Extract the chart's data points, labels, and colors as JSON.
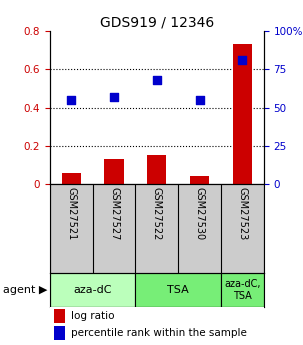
{
  "title": "GDS919 / 12346",
  "samples": [
    "GSM27521",
    "GSM27527",
    "GSM27522",
    "GSM27530",
    "GSM27523"
  ],
  "log_ratio": [
    0.058,
    0.13,
    0.155,
    0.042,
    0.73
  ],
  "percentile_rank": [
    55,
    57,
    68,
    55,
    81
  ],
  "bar_color": "#cc0000",
  "dot_color": "#0000cc",
  "ylim_left": [
    0,
    0.8
  ],
  "ylim_right": [
    0,
    100
  ],
  "yticks_left": [
    0,
    0.2,
    0.4,
    0.6,
    0.8
  ],
  "yticks_right": [
    0,
    25,
    50,
    75,
    100
  ],
  "ytick_labels_left": [
    "0",
    "0.2",
    "0.4",
    "0.6",
    "0.8"
  ],
  "ytick_labels_right": [
    "0",
    "25",
    "50",
    "75",
    "100%"
  ],
  "group_ranges": [
    {
      "label": "aza-dC",
      "start": 0,
      "end": 1,
      "color": "#bbffbb"
    },
    {
      "label": "TSA",
      "start": 2,
      "end": 3,
      "color": "#77ee77"
    },
    {
      "label": "aza-dC,\nTSA",
      "start": 4,
      "end": 4,
      "color": "#77ee77"
    }
  ],
  "legend_bar_label": "log ratio",
  "legend_dot_label": "percentile rank within the sample",
  "background_color": "#ffffff",
  "bar_width": 0.45,
  "dot_size": 30,
  "title_fontsize": 10,
  "tick_fontsize": 7.5,
  "sample_fontsize": 7,
  "agent_fontsize": 8
}
